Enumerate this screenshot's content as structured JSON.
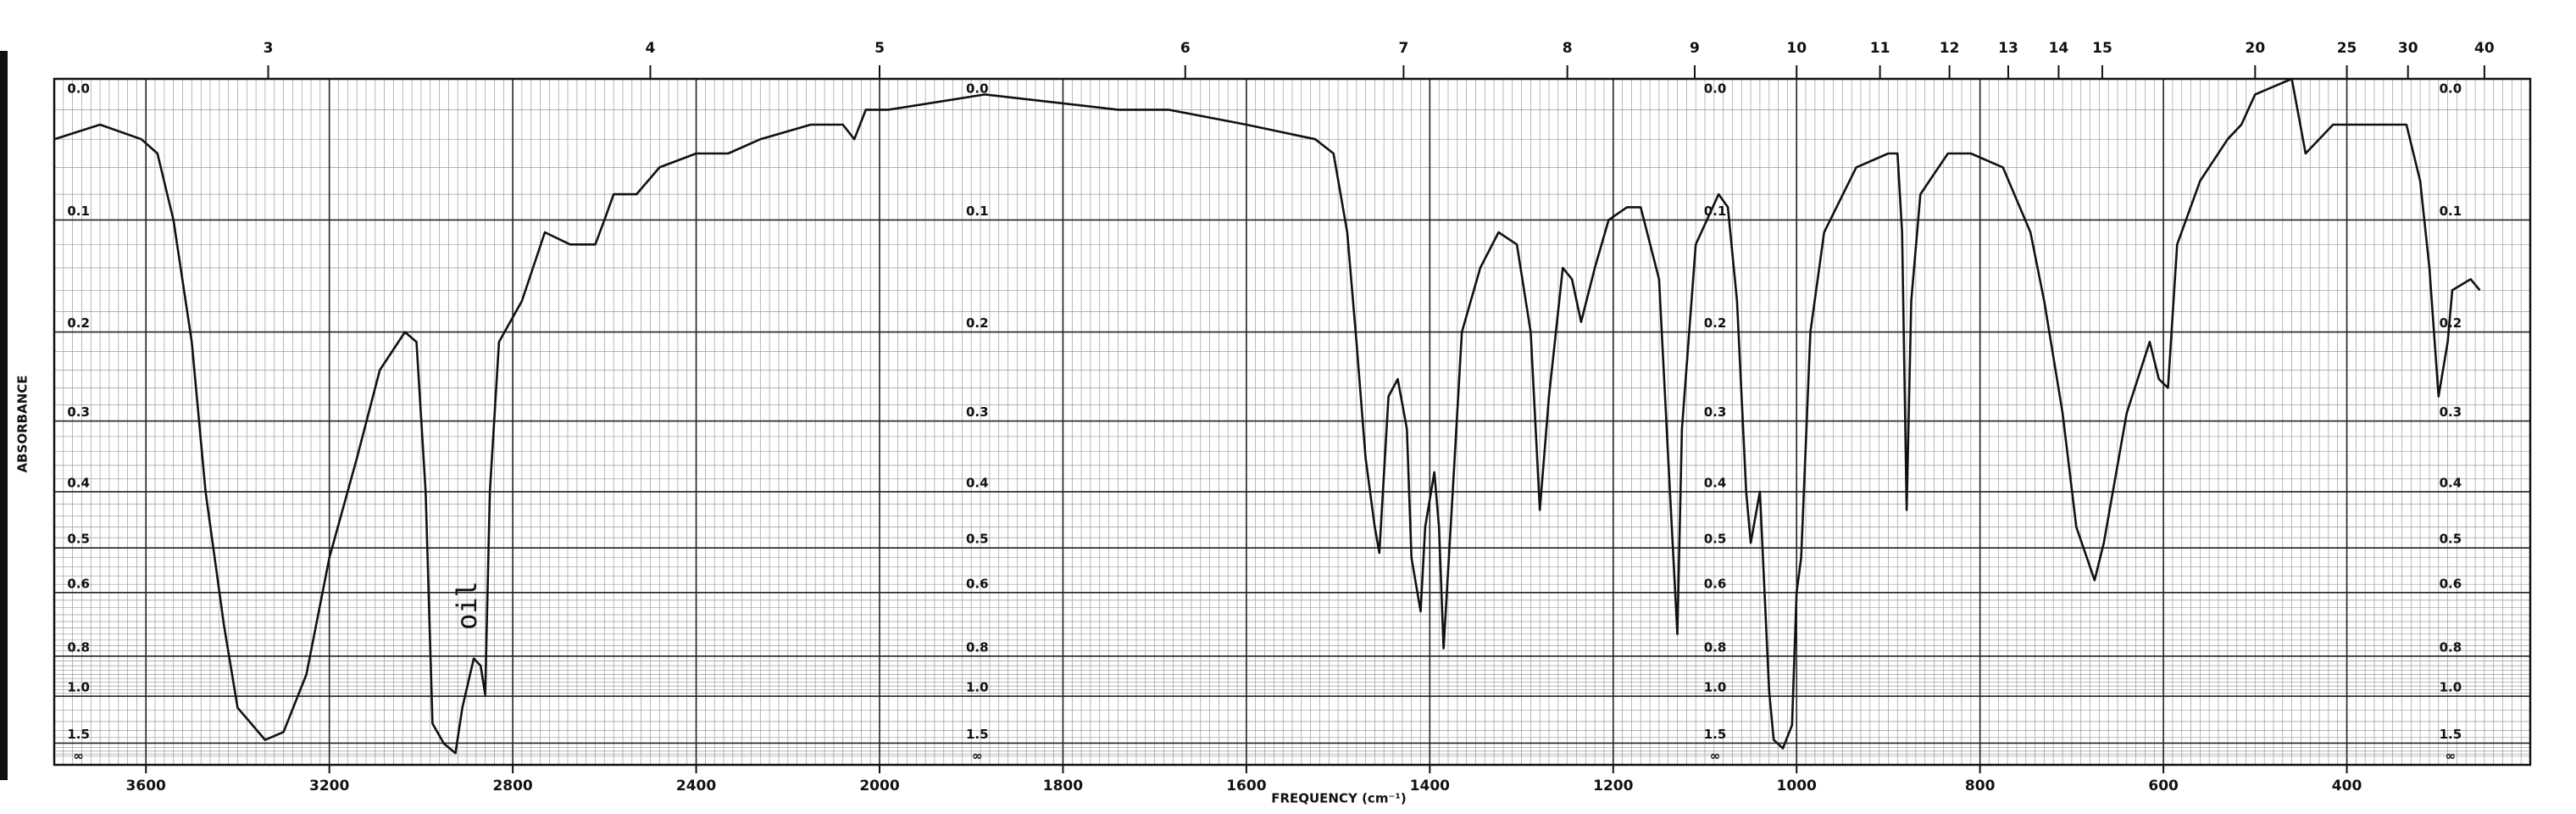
{
  "chart_data": {
    "type": "line",
    "x_label": "FREQUENCY (cm⁻¹)",
    "y_label": "ABSORBANCE",
    "annotation": "oil",
    "color": "#111111",
    "grid": true,
    "y_scale": "absorbance",
    "xlim": [
      3800,
      200
    ],
    "xticks": [
      3600,
      3200,
      2800,
      2400,
      2000,
      1800,
      1600,
      1400,
      1200,
      1000,
      800,
      600,
      400
    ],
    "x2ticks": [
      3,
      4,
      5,
      6,
      7,
      8,
      9,
      10,
      11,
      12,
      13,
      14,
      15,
      20,
      25,
      30,
      40
    ],
    "ylim": [
      0,
      "Infinity"
    ],
    "yticks": [
      {
        "value": 0,
        "label": "0.0"
      },
      0.1,
      0.2,
      0.3,
      0.4,
      0.5,
      0.6,
      0.8,
      {
        "value": 1,
        "label": "1.0"
      },
      1.5,
      {
        "value": "Infinity",
        "label": "∞"
      }
    ],
    "x": [
      3800,
      3700,
      3610,
      3575,
      3540,
      3500,
      3470,
      3430,
      3400,
      3340,
      3300,
      3250,
      3200,
      3140,
      3090,
      3035,
      3010,
      2990,
      2975,
      2950,
      2925,
      2910,
      2885,
      2870,
      2860,
      2850,
      2830,
      2780,
      2730,
      2675,
      2620,
      2600,
      2580,
      2530,
      2480,
      2400,
      2330,
      2260,
      2150,
      2080,
      2055,
      2030,
      1990,
      1885,
      1740,
      1685,
      1600,
      1525,
      1505,
      1490,
      1480,
      1470,
      1460,
      1455,
      1445,
      1435,
      1425,
      1420,
      1410,
      1405,
      1395,
      1390,
      1385,
      1375,
      1365,
      1345,
      1325,
      1305,
      1290,
      1280,
      1270,
      1255,
      1245,
      1235,
      1220,
      1205,
      1185,
      1170,
      1150,
      1140,
      1130,
      1125,
      1110,
      1085,
      1075,
      1065,
      1055,
      1050,
      1040,
      1030,
      1025,
      1015,
      1005,
      1000,
      995,
      985,
      970,
      935,
      900,
      890,
      885,
      880,
      875,
      865,
      835,
      810,
      775,
      745,
      730,
      710,
      695,
      675,
      665,
      640,
      615,
      605,
      595,
      585,
      560,
      530,
      515,
      500,
      460,
      445,
      415,
      380,
      335,
      320,
      310,
      300,
      290,
      285,
      265,
      255
    ],
    "values": [
      0.04,
      0.03,
      0.04,
      0.05,
      0.1,
      0.21,
      0.4,
      0.69,
      1.08,
      1.44,
      1.32,
      0.88,
      0.52,
      0.35,
      0.24,
      0.2,
      0.21,
      0.4,
      1.22,
      1.51,
      1.77,
      1.08,
      0.81,
      0.84,
      0.99,
      0.4,
      0.21,
      0.17,
      0.11,
      0.12,
      0.12,
      0.1,
      0.08,
      0.08,
      0.06,
      0.05,
      0.05,
      0.04,
      0.03,
      0.03,
      0.04,
      0.02,
      0.02,
      0.01,
      0.02,
      0.02,
      0.03,
      0.04,
      0.05,
      0.11,
      0.21,
      0.35,
      0.46,
      0.51,
      0.27,
      0.25,
      0.31,
      0.52,
      0.65,
      0.46,
      0.37,
      0.46,
      0.77,
      0.4,
      0.2,
      0.14,
      0.11,
      0.12,
      0.2,
      0.43,
      0.27,
      0.14,
      0.15,
      0.19,
      0.14,
      0.1,
      0.09,
      0.09,
      0.15,
      0.35,
      0.72,
      0.31,
      0.12,
      0.08,
      0.09,
      0.17,
      0.4,
      0.49,
      0.4,
      0.97,
      1.44,
      1.62,
      1.24,
      0.6,
      0.52,
      0.2,
      0.11,
      0.06,
      0.05,
      0.05,
      0.11,
      0.43,
      0.17,
      0.08,
      0.05,
      0.05,
      0.06,
      0.11,
      0.17,
      0.29,
      0.46,
      0.57,
      0.49,
      0.29,
      0.21,
      0.25,
      0.26,
      0.12,
      0.07,
      0.04,
      0.03,
      0.01,
      0,
      0.05,
      0.03,
      0.03,
      0.03,
      0.07,
      0.14,
      0.27,
      0.21,
      0.16,
      0.15,
      0.16
    ]
  }
}
